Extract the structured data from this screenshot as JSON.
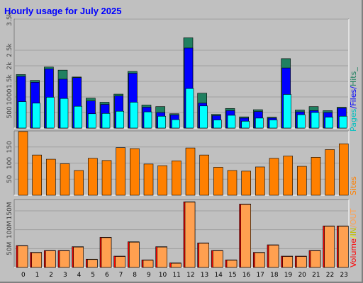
{
  "chart_data": [
    {
      "type": "bar",
      "title": "Hourly usage for July 2025",
      "categories": [
        "0",
        "1",
        "2",
        "3",
        "4",
        "5",
        "6",
        "7",
        "8",
        "9",
        "10",
        "11",
        "12",
        "13",
        "14",
        "15",
        "16",
        "17",
        "18",
        "19",
        "20",
        "21",
        "22",
        "23"
      ],
      "ylim": [
        0,
        3500
      ],
      "yticks": [
        "500",
        "1000",
        "1.5k",
        "2k",
        "2.5k",
        "3.5k"
      ],
      "ytick_values": [
        500,
        1000,
        1500,
        2000,
        2500,
        3500
      ],
      "legend": [
        "Pages",
        "Files",
        "Hits"
      ],
      "series": [
        {
          "name": "Hits",
          "color": "#208060",
          "values": [
            1720,
            1530,
            1960,
            1860,
            1640,
            960,
            830,
            1090,
            1820,
            740,
            690,
            460,
            2900,
            1120,
            440,
            630,
            360,
            590,
            350,
            2230,
            580,
            690,
            560,
            670
          ]
        },
        {
          "name": "Files",
          "color": "#0000ff",
          "values": [
            1660,
            1470,
            1900,
            1570,
            1620,
            870,
            760,
            1030,
            1760,
            670,
            500,
            420,
            2570,
            800,
            400,
            560,
            320,
            530,
            320,
            1930,
            520,
            560,
            500,
            640
          ]
        },
        {
          "name": "Pages",
          "color": "#00ffff",
          "values": [
            850,
            800,
            990,
            950,
            700,
            460,
            470,
            540,
            830,
            520,
            380,
            270,
            1270,
            710,
            260,
            410,
            220,
            320,
            260,
            1080,
            430,
            500,
            350,
            380
          ]
        }
      ]
    },
    {
      "type": "bar",
      "categories": [
        "0",
        "1",
        "2",
        "3",
        "4",
        "5",
        "6",
        "7",
        "8",
        "9",
        "10",
        "11",
        "12",
        "13",
        "14",
        "15",
        "16",
        "17",
        "18",
        "19",
        "20",
        "21",
        "22",
        "23"
      ],
      "ylim": [
        0,
        200
      ],
      "yticks": [
        "50",
        "100",
        "150"
      ],
      "ytick_values": [
        50,
        100,
        150
      ],
      "legend": [
        "Sites"
      ],
      "series": [
        {
          "name": "Sites",
          "color": "#ff8000",
          "values": [
            198,
            125,
            112,
            98,
            77,
            115,
            108,
            148,
            145,
            97,
            92,
            107,
            147,
            125,
            87,
            77,
            75,
            88,
            115,
            122,
            90,
            118,
            142,
            160
          ]
        }
      ]
    },
    {
      "type": "bar",
      "categories": [
        "0",
        "1",
        "2",
        "3",
        "4",
        "5",
        "6",
        "7",
        "8",
        "9",
        "10",
        "11",
        "12",
        "13",
        "14",
        "15",
        "16",
        "17",
        "18",
        "19",
        "20",
        "21",
        "22",
        "23"
      ],
      "ylim": [
        0,
        180
      ],
      "yticks": [
        "50M",
        "100M",
        "150M"
      ],
      "ytick_values": [
        50,
        100,
        150
      ],
      "legend": [
        "Volume",
        "IN",
        "OUT"
      ],
      "series": [
        {
          "name": "Volume",
          "color": "#ff0000",
          "values": [
            58,
            40,
            45,
            45,
            55,
            22,
            80,
            30,
            68,
            20,
            55,
            12,
            174,
            65,
            45,
            20,
            168,
            40,
            60,
            30,
            30,
            45,
            110,
            110
          ]
        },
        {
          "name": "IN",
          "color": "#ffff00",
          "values": [
            0,
            0,
            0,
            0,
            0,
            0,
            0,
            0,
            0,
            0,
            0,
            0,
            0,
            0,
            0,
            0,
            0,
            0,
            0,
            0,
            0,
            0,
            0,
            0
          ]
        },
        {
          "name": "OUT",
          "color": "#ffa050",
          "values": [
            57,
            39,
            44,
            44,
            54,
            21,
            79,
            29,
            67,
            19,
            54,
            11,
            173,
            64,
            44,
            19,
            167,
            39,
            59,
            29,
            29,
            44,
            109,
            109
          ]
        }
      ]
    }
  ],
  "hours": [
    "0",
    "1",
    "2",
    "3",
    "4",
    "5",
    "6",
    "7",
    "8",
    "9",
    "10",
    "11",
    "12",
    "13",
    "14",
    "15",
    "16",
    "17",
    "18",
    "19",
    "20",
    "21",
    "22",
    "23"
  ],
  "legend_slash": "/",
  "legend_hits_suffix": "_"
}
